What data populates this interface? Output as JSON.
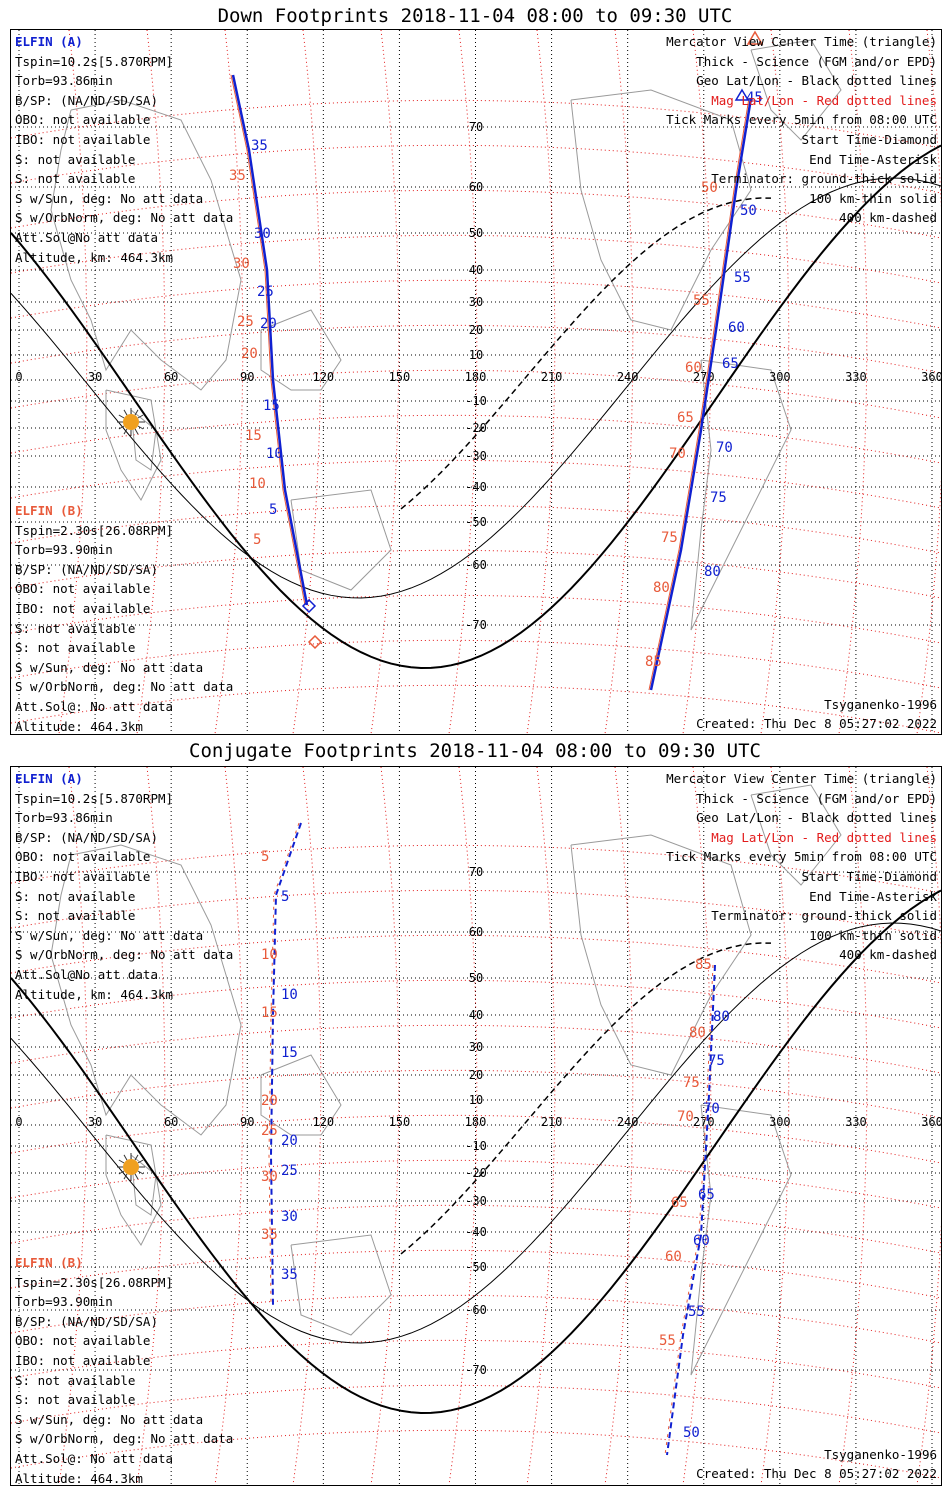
{
  "panels": [
    {
      "title": "Down Footprints 2018-11-04 08:00 to 09:30 UTC",
      "sat_a": {
        "name": "ELFIN (A)",
        "lines": [
          "Tspin=10.2s[5.870RPM]",
          "Torb=93.86min",
          "B/SP: (NA/ND/SD/SA)",
          "OBO: not available",
          "IBO: not available",
          "S: not available",
          "S: not available",
          "S w/Sun, deg: No att data",
          "S w/OrbNorm, deg: No att data",
          "Att.Sol@No att data",
          "Altitude, km: 464.3km"
        ]
      },
      "sat_b": {
        "name": "ELFIN (B)",
        "lines": [
          "Tspin=2.30s[26.08RPM]",
          "Torb=93.90min",
          "B/SP: (NA/ND/SD/SA)",
          "OBO: not available",
          "IBO: not available",
          "S: not available",
          "S: not available",
          "S w/Sun, deg: No att data",
          "S w/OrbNorm, deg: No att data",
          "Att.Sol@: No att data",
          "Altitude: 464.3km"
        ]
      },
      "legend": [
        "Mercator View Center Time (triangle)",
        "Thick - Science (FGM and/or EPD)",
        "Geo Lat/Lon - Black dotted lines",
        "Mag Lat/Lon - Red dotted lines",
        "Tick Marks every 5min from 08:00 UTC",
        "Start Time-Diamond",
        "End Time-Asterisk",
        "Terminator: ground-thick solid",
        "100 km-thin solid",
        "400 km-dashed"
      ],
      "model": "Tsyganenko-1996",
      "created": "Created: Thu Dec  8 05:27:02 2022",
      "west_blue": [
        [
          35,
          235
        ],
        [
          30,
          235
        ],
        [
          25,
          236
        ],
        [
          20,
          240
        ],
        [
          15,
          245
        ],
        [
          10,
          248
        ],
        [
          5,
          253
        ]
      ],
      "west_red": [
        [
          35,
          228
        ],
        [
          30,
          225
        ],
        [
          25,
          228
        ],
        [
          20,
          228
        ],
        [
          15,
          232
        ],
        [
          10,
          236
        ],
        [
          5,
          242
        ]
      ],
      "east_blue": [
        [
          45,
          750
        ],
        [
          50,
          742
        ],
        [
          55,
          735
        ],
        [
          60,
          728
        ],
        [
          65,
          721
        ],
        [
          70,
          714
        ],
        [
          75,
          707
        ],
        [
          80,
          700
        ]
      ],
      "east_red": [
        [
          50,
          700
        ],
        [
          55,
          690
        ],
        [
          60,
          684
        ],
        [
          65,
          675
        ],
        [
          70,
          666
        ],
        [
          75,
          660
        ],
        [
          80,
          650
        ],
        [
          85,
          640
        ]
      ]
    },
    {
      "title": "Conjugate Footprints 2018-11-04 08:00 to 09:30 UTC",
      "sat_a": {
        "name": "ELFIN (A)",
        "lines": [
          "Tspin=10.2s[5.870RPM]",
          "Torb=93.86min",
          "B/SP: (NA/ND/SD/SA)",
          "OBO: not available",
          "IBO: not available",
          "S: not available",
          "S: not available",
          "S w/Sun, deg: No att data",
          "S w/OrbNorm, deg: No att data",
          "Att.Sol@No att data",
          "Altitude, km: 464.3km"
        ]
      },
      "sat_b": {
        "name": "ELFIN (B)",
        "lines": [
          "Tspin=2.30s[26.08RPM]",
          "Torb=93.90min",
          "B/SP: (NA/ND/SD/SA)",
          "OBO: not available",
          "IBO: not available",
          "S: not available",
          "S: not available",
          "S w/Sun, deg: No att data",
          "S w/OrbNorm, deg: No att data",
          "Att.Sol@: No att data",
          "Altitude: 464.3km"
        ]
      },
      "legend": [
        "Mercator View Center Time (triangle)",
        "Thick - Science (FGM and/or EPD)",
        "Geo Lat/Lon - Black dotted lines",
        "Mag Lat/Lon - Red dotted lines",
        "Tick Marks every 5min from 08:00 UTC",
        "Start Time-Diamond",
        "End Time-Asterisk",
        "Terminator: ground-thick solid",
        "100 km-thin solid",
        "400 km-dashed"
      ],
      "model": "Tsyganenko-1996",
      "created": "Created: Thu Dec  8 05:27:02 2022"
    }
  ],
  "axis": {
    "lon_ticks": [
      "0",
      "30",
      "60",
      "90",
      "120",
      "150",
      "180",
      "210",
      "240",
      "270",
      "300",
      "330",
      "360"
    ],
    "lat_ticks_north": [
      "70",
      "60",
      "50",
      "40",
      "30",
      "20",
      "10"
    ],
    "lat_ticks_south": [
      "-10",
      "-20",
      "-30",
      "-40",
      "-50",
      "-60",
      "-70"
    ]
  },
  "track_labels": {
    "down": {
      "a_west": [
        "35",
        "30",
        "25",
        "20",
        "15",
        "10",
        "5"
      ],
      "b_west": [
        "35",
        "30",
        "25",
        "20",
        "15",
        "10",
        "5"
      ],
      "a_east": [
        "45",
        "50",
        "55",
        "60",
        "65",
        "70",
        "75",
        "80"
      ],
      "b_east": [
        "50",
        "55",
        "60",
        "65",
        "70",
        "75",
        "80",
        "85"
      ]
    },
    "conj": {
      "a_west": [
        "5",
        "10",
        "15",
        "20",
        "25",
        "30",
        "35"
      ],
      "b_west": [
        "5",
        "10",
        "15",
        "20",
        "25",
        "30",
        "35"
      ],
      "a_east": [
        "80",
        "75",
        "70",
        "65",
        "60",
        "55",
        "50"
      ],
      "b_east": [
        "85",
        "80",
        "75",
        "70",
        "65",
        "60",
        "55"
      ]
    }
  },
  "colors": {
    "elfin_a": "#1020d0",
    "elfin_b": "#e85a3a",
    "mag_grid": "#e21b1b",
    "geo_grid": "#000000",
    "coast": "#9a9a9a",
    "sun": "#f0a020"
  }
}
